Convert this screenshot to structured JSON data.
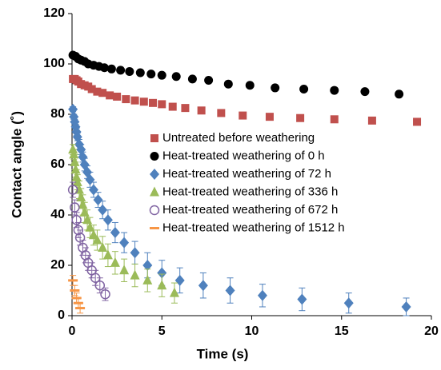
{
  "chart_data": {
    "type": "scatter",
    "xlabel": "Time (s)",
    "ylabel": "Contact angle (˚)",
    "xlim": [
      0,
      20
    ],
    "xticks": [
      0,
      5,
      10,
      15,
      20
    ],
    "ylim": [
      0,
      120
    ],
    "yticks": [
      0,
      20,
      40,
      60,
      80,
      100,
      120
    ],
    "grid": false,
    "legend": "right",
    "series": [
      {
        "name": "Untreated before weathering",
        "color": "#c0504d",
        "marker": "square",
        "x": [
          0.05,
          0.15,
          0.25,
          0.35,
          0.5,
          0.7,
          0.9,
          1.1,
          1.4,
          1.7,
          2.1,
          2.5,
          3.0,
          3.5,
          4.0,
          4.5,
          5.0,
          5.6,
          6.3,
          7.2,
          8.3,
          9.5,
          11.0,
          12.7,
          14.6,
          16.7,
          19.2
        ],
        "values": [
          94,
          94,
          93.5,
          93,
          92,
          91.5,
          91,
          90,
          89,
          88.5,
          87.5,
          87,
          86,
          85.5,
          85,
          84.5,
          84,
          83,
          82.5,
          81.5,
          80.5,
          79.5,
          79,
          78.5,
          78,
          77.5,
          77
        ]
      },
      {
        "name": "Heat-treated weathering of 0 h",
        "color": "#000000",
        "marker": "circle",
        "x": [
          0.05,
          0.2,
          0.35,
          0.5,
          0.7,
          0.9,
          1.2,
          1.5,
          1.8,
          2.2,
          2.7,
          3.2,
          3.8,
          4.4,
          5.0,
          5.8,
          6.7,
          7.6,
          8.7,
          9.9,
          11.3,
          12.9,
          14.6,
          16.3,
          18.2
        ],
        "values": [
          103.5,
          103,
          102,
          101.5,
          101,
          100,
          99.5,
          99,
          98.5,
          98,
          97.5,
          97,
          96.5,
          96,
          95.5,
          95,
          94,
          93.5,
          92,
          91.5,
          90.5,
          90,
          89.5,
          89,
          88
        ]
      },
      {
        "name": "Heat-treated weathering of 72 h",
        "color": "#4f81bd",
        "marker": "diamond",
        "x": [
          0.05,
          0.1,
          0.15,
          0.2,
          0.25,
          0.3,
          0.4,
          0.5,
          0.6,
          0.7,
          0.85,
          1.0,
          1.2,
          1.45,
          1.7,
          2.0,
          2.4,
          2.9,
          3.5,
          4.2,
          5.0,
          6.0,
          7.3,
          8.8,
          10.6,
          12.8,
          15.4,
          18.6
        ],
        "values": [
          82,
          79,
          77,
          75,
          73,
          71,
          68,
          66,
          63,
          60,
          57,
          54,
          50,
          46,
          42,
          38,
          33,
          29,
          25,
          20,
          17,
          14,
          12,
          10,
          8,
          6.5,
          5,
          3.5
        ],
        "errors": [
          1,
          1,
          1,
          1,
          1.5,
          1.5,
          2,
          2,
          2,
          2.5,
          2.5,
          3,
          3,
          3,
          3.5,
          4,
          4,
          4,
          4.5,
          5,
          5,
          5,
          5,
          5,
          4.5,
          4.5,
          4,
          3.5
        ]
      },
      {
        "name": "Heat-treated weathering of 336 h",
        "color": "#9bbb59",
        "marker": "triangle",
        "x": [
          0.05,
          0.1,
          0.15,
          0.2,
          0.25,
          0.3,
          0.4,
          0.5,
          0.6,
          0.7,
          0.85,
          1.0,
          1.2,
          1.4,
          1.7,
          2.0,
          2.4,
          2.9,
          3.5,
          4.2,
          5.0,
          5.7
        ],
        "values": [
          66,
          64,
          61,
          58,
          55,
          53,
          50,
          47,
          44,
          41,
          38,
          35,
          32,
          30,
          27,
          24,
          21,
          18,
          16,
          14,
          12,
          9
        ],
        "errors": [
          2,
          2,
          3,
          3,
          3,
          3,
          3.5,
          3.5,
          4,
          4,
          4,
          4,
          4,
          4,
          4.5,
          4.5,
          4.5,
          4.5,
          4.5,
          4.5,
          4.5,
          4
        ]
      },
      {
        "name": "Heat-treated weathering of 672 h",
        "color": "#8064a2",
        "marker": "open-circle",
        "x": [
          0.05,
          0.15,
          0.25,
          0.35,
          0.45,
          0.6,
          0.75,
          0.9,
          1.1,
          1.3,
          1.55,
          1.85
        ],
        "values": [
          50,
          43,
          38,
          34,
          31,
          27,
          24,
          21,
          18,
          15,
          12,
          8.5
        ],
        "errors": [
          3,
          3,
          3,
          3,
          3,
          3,
          3,
          3,
          3,
          3,
          3,
          2.5
        ]
      },
      {
        "name": "Heat-treated weathering of 1512 h",
        "color": "#f79646",
        "marker": "dash",
        "x": [
          0.05,
          0.15,
          0.25,
          0.35,
          0.45
        ],
        "values": [
          14,
          10,
          7,
          5,
          3
        ],
        "errors": [
          2,
          2,
          2,
          2,
          2
        ]
      }
    ]
  }
}
